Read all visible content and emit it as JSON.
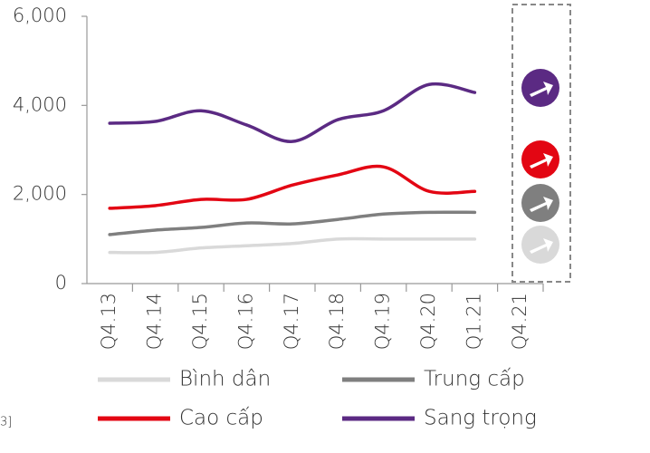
{
  "chart_data": {
    "type": "line",
    "categories": [
      "Q4.13",
      "Q4.14",
      "Q4.15",
      "Q4.16",
      "Q4.17",
      "Q4.18",
      "Q4.19",
      "Q4.20",
      "Q1.21",
      "Q4.21"
    ],
    "series": [
      {
        "name": "Bình dân",
        "color": "#d9d9d9",
        "values": [
          700,
          700,
          800,
          850,
          900,
          1000,
          1000,
          1000,
          1000,
          null
        ]
      },
      {
        "name": "Trung cấp",
        "color": "#7f7f7f",
        "values": [
          1100,
          1200,
          1260,
          1360,
          1340,
          1440,
          1560,
          1600,
          1600,
          null
        ]
      },
      {
        "name": "Cao cấp",
        "color": "#e30613",
        "values": [
          1690,
          1750,
          1890,
          1890,
          2210,
          2440,
          2620,
          2070,
          2070,
          null
        ]
      },
      {
        "name": "Sang trọng",
        "color": "#5b2a83",
        "values": [
          3600,
          3640,
          3880,
          3560,
          3190,
          3680,
          3880,
          4470,
          4290,
          null
        ]
      }
    ],
    "ylim": [
      0,
      6000
    ],
    "yticks": [
      0,
      {
        "value": 2000,
        "label": "2,000"
      },
      {
        "value": 4000,
        "label": "4,000"
      },
      {
        "value": 6000,
        "label": "6,000"
      }
    ],
    "grid": false,
    "annotations": [
      "3]"
    ]
  }
}
